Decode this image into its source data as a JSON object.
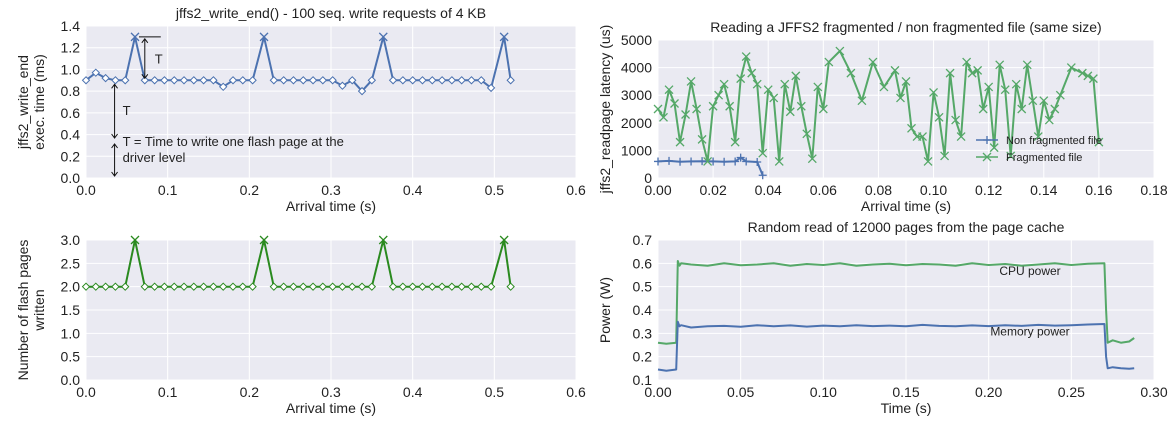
{
  "chart_data": [
    {
      "id": "exec_time",
      "type": "line",
      "title": "jffs2_write_end() - 100 seq. write requests of 4 KB",
      "xlabel": "Arrival time (s)",
      "ylabel_lines": [
        "jffs2_write_end",
        "exec. time (ms)"
      ],
      "xlim": [
        0.0,
        0.6
      ],
      "ylim": [
        0.0,
        1.4
      ],
      "xticks": [
        "0.0",
        "0.1",
        "0.2",
        "0.3",
        "0.4",
        "0.5",
        "0.6"
      ],
      "yticks": [
        "0.0",
        "0.2",
        "0.4",
        "0.6",
        "0.8",
        "1.0",
        "1.2",
        "1.4"
      ],
      "grid": true,
      "colors": {
        "series": "#4c72b0",
        "background": "#eaeaf2",
        "grid": "#ffffff"
      },
      "annotations": {
        "t_label_top": "T",
        "t_label_mid": "T",
        "note_lines": [
          "T = Time to write one flash page at the",
          "driver level"
        ]
      },
      "series": [
        {
          "x": [
            0.0,
            0.012,
            0.024,
            0.036,
            0.048,
            0.06,
            0.072,
            0.084,
            0.096,
            0.108,
            0.12,
            0.132,
            0.144,
            0.156,
            0.168,
            0.18,
            0.192,
            0.204,
            0.218,
            0.23,
            0.242,
            0.254,
            0.266,
            0.278,
            0.29,
            0.302,
            0.314,
            0.326,
            0.338,
            0.35,
            0.364,
            0.376,
            0.388,
            0.4,
            0.412,
            0.424,
            0.436,
            0.448,
            0.46,
            0.472,
            0.484,
            0.496,
            0.512,
            0.52
          ],
          "y": [
            0.9,
            0.97,
            0.92,
            0.9,
            0.9,
            1.3,
            0.9,
            0.9,
            0.9,
            0.9,
            0.9,
            0.9,
            0.9,
            0.9,
            0.84,
            0.9,
            0.9,
            0.9,
            1.3,
            0.9,
            0.9,
            0.9,
            0.9,
            0.9,
            0.9,
            0.9,
            0.85,
            0.9,
            0.8,
            0.9,
            1.3,
            0.9,
            0.9,
            0.9,
            0.9,
            0.9,
            0.9,
            0.9,
            0.9,
            0.9,
            0.9,
            0.83,
            1.3,
            0.9
          ]
        }
      ]
    },
    {
      "id": "flash_pages",
      "type": "line",
      "title": "",
      "xlabel": "Arrival time (s)",
      "ylabel_lines": [
        "Number of flash pages",
        "written"
      ],
      "xlim": [
        0.0,
        0.6
      ],
      "ylim": [
        0.0,
        3.0
      ],
      "xticks": [
        "0.0",
        "0.1",
        "0.2",
        "0.3",
        "0.4",
        "0.5",
        "0.6"
      ],
      "yticks": [
        "0.0",
        "0.5",
        "1.0",
        "1.5",
        "2.0",
        "2.5",
        "3.0"
      ],
      "grid": true,
      "colors": {
        "series": "#2a8a1f",
        "background": "#eaeaf2",
        "grid": "#ffffff"
      },
      "series": [
        {
          "x": [
            0.0,
            0.012,
            0.024,
            0.036,
            0.048,
            0.06,
            0.072,
            0.084,
            0.096,
            0.108,
            0.12,
            0.132,
            0.144,
            0.156,
            0.168,
            0.18,
            0.192,
            0.204,
            0.218,
            0.23,
            0.242,
            0.254,
            0.266,
            0.278,
            0.29,
            0.302,
            0.314,
            0.326,
            0.338,
            0.35,
            0.364,
            0.376,
            0.388,
            0.4,
            0.412,
            0.424,
            0.436,
            0.448,
            0.46,
            0.472,
            0.484,
            0.496,
            0.512,
            0.52
          ],
          "y": [
            2,
            2,
            2,
            2,
            2,
            3,
            2,
            2,
            2,
            2,
            2,
            2,
            2,
            2,
            2,
            2,
            2,
            2,
            3,
            2,
            2,
            2,
            2,
            2,
            2,
            2,
            2,
            2,
            2,
            2,
            3,
            2,
            2,
            2,
            2,
            2,
            2,
            2,
            2,
            2,
            2,
            2,
            3,
            2
          ]
        }
      ]
    },
    {
      "id": "readpage_latency",
      "type": "line",
      "title": "Reading a JFFS2 fragmented / non fragmented file (same size)",
      "xlabel": "Arrival time (s)",
      "ylabel_lines": [
        "jffs2_readpage latency (us)"
      ],
      "xlim": [
        0.0,
        0.18
      ],
      "ylim": [
        0,
        5000
      ],
      "xticks": [
        "0.00",
        "0.02",
        "0.04",
        "0.06",
        "0.08",
        "0.10",
        "0.12",
        "0.14",
        "0.16",
        "0.18"
      ],
      "yticks": [
        "0",
        "1000",
        "2000",
        "3000",
        "4000",
        "5000"
      ],
      "grid": true,
      "legend": "lower-right",
      "colors": {
        "background": "#eaeaf2",
        "grid": "#ffffff"
      },
      "series": [
        {
          "name": "Non fragmented file",
          "marker": "plus",
          "color": "#4c72b0",
          "x": [
            0.0,
            0.004,
            0.008,
            0.012,
            0.016,
            0.02,
            0.024,
            0.028,
            0.03,
            0.032,
            0.036,
            0.038
          ],
          "y": [
            600,
            620,
            590,
            600,
            610,
            600,
            590,
            600,
            740,
            600,
            580,
            100
          ]
        },
        {
          "name": "Fragmented file",
          "marker": "x",
          "color": "#55a868",
          "x": [
            0.0,
            0.002,
            0.004,
            0.006,
            0.008,
            0.01,
            0.012,
            0.014,
            0.016,
            0.018,
            0.02,
            0.022,
            0.024,
            0.026,
            0.028,
            0.03,
            0.032,
            0.034,
            0.036,
            0.038,
            0.04,
            0.042,
            0.044,
            0.046,
            0.048,
            0.05,
            0.052,
            0.054,
            0.056,
            0.058,
            0.06,
            0.062,
            0.066,
            0.07,
            0.074,
            0.078,
            0.082,
            0.086,
            0.088,
            0.09,
            0.092,
            0.094,
            0.096,
            0.098,
            0.1,
            0.102,
            0.104,
            0.106,
            0.108,
            0.11,
            0.112,
            0.114,
            0.116,
            0.118,
            0.12,
            0.122,
            0.124,
            0.126,
            0.128,
            0.13,
            0.132,
            0.134,
            0.136,
            0.138,
            0.14,
            0.142,
            0.144,
            0.146,
            0.15,
            0.154,
            0.156,
            0.158,
            0.16
          ],
          "y": [
            2500,
            2200,
            3200,
            2700,
            1300,
            2300,
            3500,
            2500,
            1400,
            600,
            2600,
            3000,
            3400,
            2600,
            1300,
            3600,
            4400,
            3800,
            3400,
            900,
            3200,
            2900,
            600,
            3400,
            2400,
            3700,
            2600,
            1600,
            700,
            3300,
            2500,
            4200,
            4600,
            3800,
            2800,
            4200,
            3300,
            3900,
            2900,
            3500,
            1800,
            1500,
            1500,
            600,
            3100,
            2200,
            800,
            3800,
            2100,
            1500,
            4200,
            3800,
            3900,
            2500,
            3300,
            1100,
            4100,
            3200,
            800,
            3400,
            2500,
            4100,
            2800,
            1500,
            2800,
            2100,
            2500,
            3000,
            4000,
            3800,
            3700,
            3600,
            1300
          ]
        }
      ]
    },
    {
      "id": "power",
      "type": "line",
      "title": "Random read of 12000 pages from the page cache",
      "xlabel": "Time (s)",
      "ylabel_lines": [
        "Power (W)"
      ],
      "xlim": [
        0.0,
        0.3
      ],
      "ylim": [
        0.1,
        0.7
      ],
      "xticks": [
        "0.00",
        "0.05",
        "0.10",
        "0.15",
        "0.20",
        "0.25",
        "0.30"
      ],
      "yticks": [
        "0.1",
        "0.2",
        "0.3",
        "0.4",
        "0.5",
        "0.6",
        "0.7"
      ],
      "grid": true,
      "colors": {
        "background": "#eaeaf2",
        "grid": "#ffffff"
      },
      "annotations": {
        "cpu_label": "CPU power",
        "mem_label": "Memory power"
      },
      "series": [
        {
          "name": "CPU power",
          "color": "#55a868",
          "x": [
            0.0,
            0.005,
            0.011,
            0.012,
            0.013,
            0.014,
            0.02,
            0.03,
            0.04,
            0.05,
            0.06,
            0.07,
            0.08,
            0.09,
            0.1,
            0.11,
            0.12,
            0.13,
            0.14,
            0.15,
            0.16,
            0.17,
            0.18,
            0.19,
            0.2,
            0.21,
            0.22,
            0.23,
            0.24,
            0.25,
            0.26,
            0.27,
            0.271,
            0.272,
            0.275,
            0.28,
            0.285,
            0.288
          ],
          "y": [
            0.26,
            0.255,
            0.26,
            0.61,
            0.59,
            0.6,
            0.595,
            0.59,
            0.6,
            0.592,
            0.595,
            0.6,
            0.59,
            0.597,
            0.593,
            0.6,
            0.59,
            0.595,
            0.598,
            0.592,
            0.597,
            0.595,
            0.59,
            0.6,
            0.593,
            0.597,
            0.59,
            0.595,
            0.6,
            0.593,
            0.598,
            0.6,
            0.4,
            0.26,
            0.27,
            0.26,
            0.265,
            0.28
          ]
        },
        {
          "name": "Memory power",
          "color": "#4c72b0",
          "x": [
            0.0,
            0.005,
            0.011,
            0.012,
            0.013,
            0.014,
            0.02,
            0.03,
            0.04,
            0.05,
            0.06,
            0.07,
            0.08,
            0.09,
            0.1,
            0.11,
            0.12,
            0.13,
            0.14,
            0.15,
            0.16,
            0.17,
            0.18,
            0.19,
            0.2,
            0.21,
            0.22,
            0.23,
            0.24,
            0.25,
            0.26,
            0.27,
            0.271,
            0.272,
            0.275,
            0.28,
            0.285,
            0.288
          ],
          "y": [
            0.145,
            0.14,
            0.145,
            0.35,
            0.33,
            0.335,
            0.325,
            0.33,
            0.332,
            0.328,
            0.335,
            0.33,
            0.334,
            0.329,
            0.333,
            0.33,
            0.335,
            0.331,
            0.333,
            0.33,
            0.336,
            0.332,
            0.33,
            0.334,
            0.331,
            0.335,
            0.332,
            0.336,
            0.333,
            0.335,
            0.338,
            0.34,
            0.2,
            0.15,
            0.155,
            0.15,
            0.148,
            0.15
          ]
        }
      ]
    }
  ]
}
